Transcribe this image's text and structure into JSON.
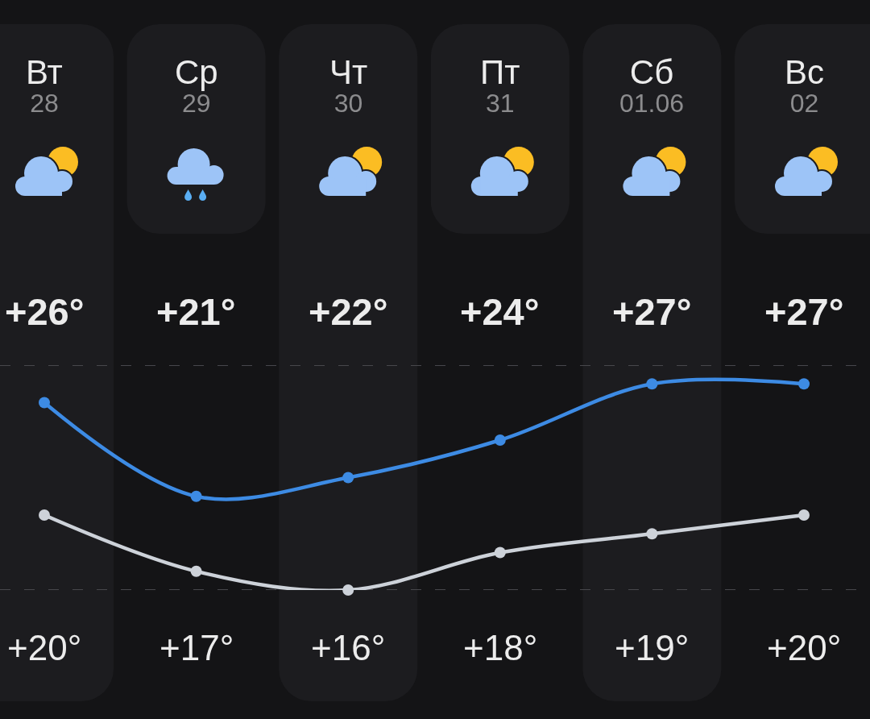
{
  "chart_data": {
    "type": "line",
    "categories": [
      "Вт\n28",
      "Ср\n29",
      "Чт\n30",
      "Пт\n31",
      "Сб\n01.06",
      "Вс\n02"
    ],
    "series": [
      {
        "color": "#3d8be4",
        "values": [
          26,
          21,
          22,
          24,
          27,
          27
        ],
        "value_labels": [
          "+26°",
          "+21°",
          "+22°",
          "+24°",
          "+27°",
          "+27°"
        ]
      },
      {
        "color": "#cdd2d9",
        "values": [
          20,
          17,
          16,
          18,
          19,
          20
        ],
        "value_labels": [
          "+20°",
          "+17°",
          "+16°",
          "+18°",
          "+19°",
          "+20°"
        ]
      }
    ],
    "ref_lines": [
      {
        "axis": "y",
        "value": 28,
        "color": "#47474c",
        "line_style": "dashed"
      },
      {
        "axis": "y",
        "value": 16,
        "color": "#47474c",
        "line_style": "dashed"
      }
    ],
    "marker": "circle",
    "line_style": "solid",
    "tick_labels": "x"
  }
}
